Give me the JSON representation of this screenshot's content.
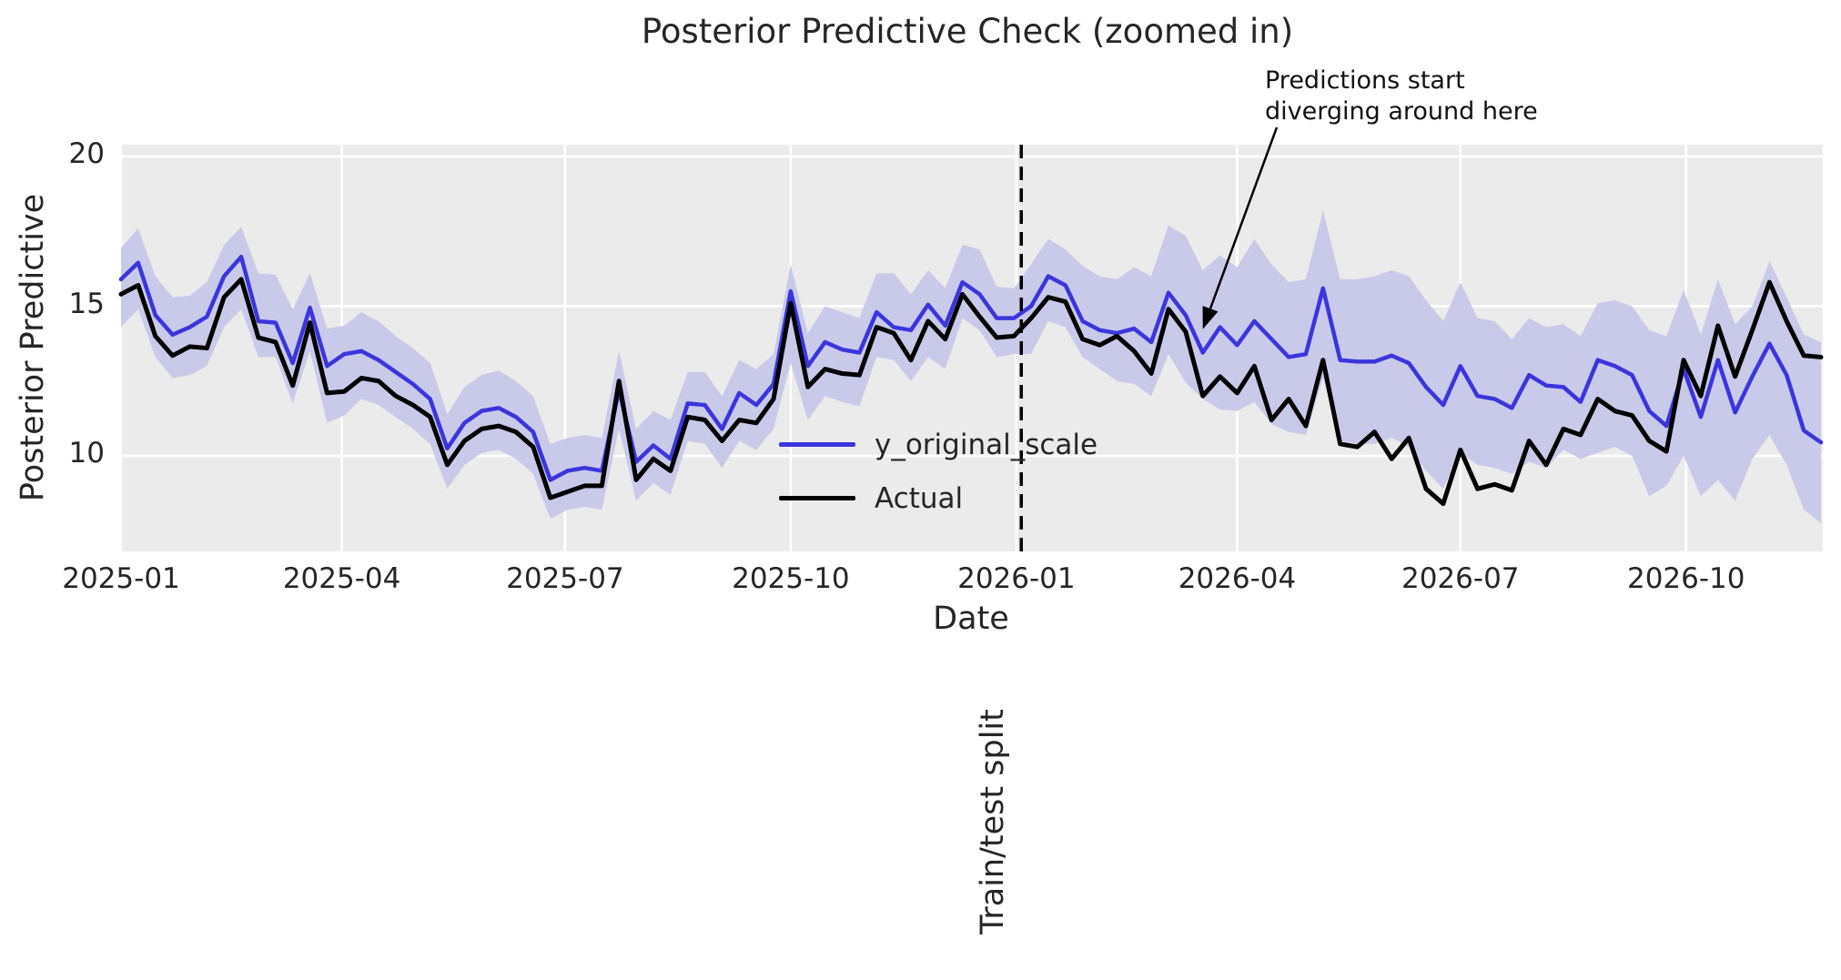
{
  "chart_data": {
    "type": "line",
    "title": "Posterior Predictive Check (zoomed in)",
    "xlabel": "Date",
    "ylabel": "Posterior Predictive",
    "x_tick_labels": [
      "2025-01",
      "2025-04",
      "2025-07",
      "2025-10",
      "2026-01",
      "2026-04",
      "2026-07",
      "2026-10"
    ],
    "x_tick_days": [
      0,
      90,
      181,
      273,
      365,
      455,
      546,
      638
    ],
    "x_total_days": 693,
    "x_range": [
      "2025-01-01",
      "2026-11-25"
    ],
    "points_freq_days": 7,
    "y_ticks": [
      10,
      15,
      20
    ],
    "ylim": [
      6.8,
      20.4
    ],
    "grid": true,
    "plot_bg": "#ebebeb",
    "grid_color": "#ffffff",
    "series": [
      {
        "name": "y_original_scale",
        "color": "#3b35dd",
        "values": [
          15.9,
          16.45,
          14.7,
          14.05,
          14.3,
          14.65,
          16.0,
          16.65,
          14.5,
          14.45,
          13.1,
          14.95,
          13.0,
          13.4,
          13.5,
          13.2,
          12.8,
          12.4,
          11.9,
          10.25,
          11.1,
          11.5,
          11.6,
          11.3,
          10.8,
          9.2,
          9.5,
          9.6,
          9.5,
          12.2,
          9.8,
          10.35,
          9.9,
          11.75,
          11.7,
          10.9,
          12.1,
          11.7,
          12.4,
          15.5,
          13.0,
          13.8,
          13.55,
          13.45,
          14.8,
          14.3,
          14.2,
          15.05,
          14.35,
          15.8,
          15.4,
          14.6,
          14.6,
          15.0,
          16.0,
          15.7,
          14.5,
          14.2,
          14.1,
          14.25,
          13.8,
          15.45,
          14.7,
          13.45,
          14.3,
          13.7,
          14.5,
          13.9,
          13.3,
          13.4,
          15.6,
          13.2,
          13.15,
          13.15,
          13.35,
          13.1,
          12.3,
          11.7,
          13.0,
          12.0,
          11.9,
          11.6,
          12.7,
          12.35,
          12.3,
          11.8,
          13.2,
          13.0,
          12.7,
          11.5,
          11.0,
          12.9,
          11.3,
          13.2,
          11.45,
          12.65,
          13.75,
          12.7,
          10.85,
          10.45
        ]
      },
      {
        "name": "Actual",
        "color": "#000000",
        "values": [
          15.4,
          15.7,
          14.0,
          13.35,
          13.65,
          13.6,
          15.3,
          15.9,
          13.95,
          13.8,
          12.35,
          14.45,
          12.1,
          12.15,
          12.6,
          12.5,
          12.0,
          11.7,
          11.3,
          9.7,
          10.5,
          10.9,
          11.0,
          10.8,
          10.3,
          8.6,
          8.8,
          9.0,
          9.0,
          12.5,
          9.2,
          9.9,
          9.5,
          11.3,
          11.2,
          10.5,
          11.2,
          11.1,
          11.9,
          15.1,
          12.3,
          12.9,
          12.75,
          12.7,
          14.3,
          14.1,
          13.2,
          14.5,
          13.9,
          15.4,
          14.65,
          13.95,
          14.0,
          14.6,
          15.3,
          15.15,
          13.9,
          13.7,
          14.0,
          13.5,
          12.75,
          14.9,
          14.15,
          12.0,
          12.65,
          12.1,
          13.0,
          11.2,
          11.9,
          11.0,
          13.2,
          10.4,
          10.3,
          10.8,
          9.9,
          10.6,
          8.9,
          8.4,
          10.2,
          8.9,
          9.05,
          8.85,
          10.5,
          9.7,
          10.9,
          10.7,
          11.9,
          11.5,
          11.35,
          10.5,
          10.15,
          13.2,
          12.0,
          14.35,
          12.65,
          14.2,
          15.8,
          14.5,
          13.35,
          13.3
        ]
      }
    ],
    "band": {
      "series": "y_original_scale",
      "color": "#c9cae9",
      "lower": [
        14.3,
        14.9,
        13.3,
        12.6,
        12.7,
        13.0,
        14.3,
        14.9,
        13.3,
        13.3,
        11.75,
        13.5,
        11.1,
        11.35,
        11.9,
        11.7,
        11.3,
        10.9,
        10.4,
        8.9,
        9.7,
        10.1,
        10.2,
        9.9,
        9.4,
        7.9,
        8.2,
        8.3,
        8.2,
        10.9,
        8.5,
        9.1,
        8.7,
        10.5,
        10.4,
        9.6,
        10.5,
        10.2,
        10.9,
        13.1,
        11.2,
        12.0,
        11.8,
        11.65,
        13.3,
        13.2,
        12.5,
        13.3,
        12.9,
        14.6,
        14.2,
        13.3,
        13.4,
        13.4,
        14.5,
        14.3,
        13.3,
        12.9,
        12.5,
        12.4,
        12.0,
        13.4,
        12.45,
        11.9,
        11.55,
        11.5,
        11.8,
        11.05,
        10.8,
        10.7,
        12.6,
        10.5,
        10.4,
        10.4,
        10.6,
        10.3,
        9.5,
        8.9,
        10.1,
        9.7,
        9.6,
        9.4,
        9.8,
        9.6,
        10.2,
        9.9,
        10.1,
        10.3,
        10.0,
        8.65,
        9.0,
        10.0,
        8.65,
        9.2,
        8.5,
        9.9,
        10.7,
        9.7,
        8.2,
        7.75
      ],
      "upper": [
        16.95,
        17.6,
        16.0,
        15.3,
        15.35,
        15.8,
        17.05,
        17.65,
        16.1,
        16.05,
        14.9,
        16.1,
        14.25,
        14.35,
        14.8,
        14.5,
        14.0,
        13.6,
        13.1,
        11.4,
        12.3,
        12.7,
        12.85,
        12.5,
        12.0,
        10.4,
        10.6,
        10.7,
        10.6,
        13.5,
        10.9,
        11.5,
        11.2,
        12.8,
        12.8,
        12.0,
        13.2,
        12.9,
        13.4,
        16.4,
        14.1,
        15.0,
        14.8,
        14.6,
        16.1,
        16.1,
        15.4,
        16.2,
        15.6,
        17.05,
        16.9,
        15.65,
        15.6,
        16.4,
        17.25,
        16.9,
        16.35,
        16.0,
        15.9,
        16.3,
        16.0,
        17.7,
        17.35,
        16.2,
        16.7,
        16.3,
        17.25,
        16.4,
        15.8,
        15.9,
        18.2,
        15.9,
        15.9,
        16.0,
        16.2,
        16.0,
        15.2,
        14.5,
        15.8,
        14.6,
        14.5,
        13.9,
        14.6,
        14.3,
        14.4,
        14.0,
        15.1,
        15.2,
        15.0,
        14.2,
        14.0,
        15.55,
        14.05,
        15.9,
        14.4,
        15.0,
        16.5,
        15.3,
        14.05,
        13.8
      ]
    },
    "split_line": {
      "day": 367,
      "style": "dashed",
      "color": "#000000",
      "label": "Train/test split"
    },
    "annotation": {
      "lines": [
        "Predictions start",
        "diverging around here"
      ],
      "target_week": 63,
      "target_value": 14.05
    },
    "legend": {
      "entries": [
        "y_original_scale",
        "Actual"
      ],
      "position": "center",
      "frame": false
    }
  }
}
